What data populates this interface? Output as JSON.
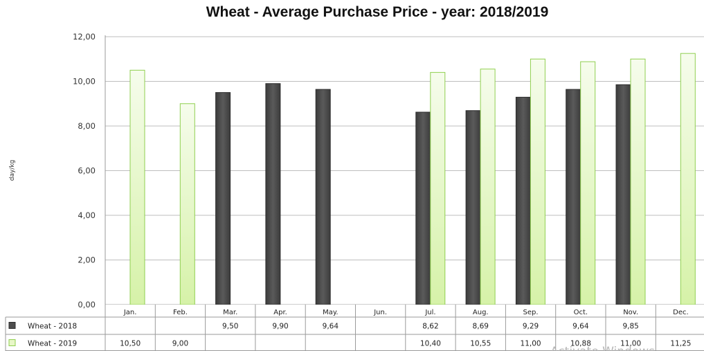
{
  "chart_data": {
    "type": "bar",
    "title": "Wheat - Average Purchase Price - year: 2018/2019",
    "ylabel": "day/kg",
    "xlabel": "",
    "ylim": [
      0,
      12
    ],
    "y_ticks": [
      "0,00",
      "2,00",
      "4,00",
      "6,00",
      "8,00",
      "10,00",
      "12,00"
    ],
    "grid": true,
    "legend_placement": "data-table-left",
    "categories": [
      "Jan.",
      "Feb.",
      "Mar.",
      "Apr.",
      "May.",
      "Jun.",
      "Jul.",
      "Aug.",
      "Sep.",
      "Oct.",
      "Nov.",
      "Dec."
    ],
    "series": [
      {
        "name": "Wheat  - 2018",
        "color": "#4d4d4d",
        "values": [
          null,
          null,
          9.5,
          9.9,
          9.64,
          null,
          8.62,
          8.69,
          9.29,
          9.64,
          9.85,
          null
        ],
        "labels": [
          "",
          "",
          "9,50",
          "9,90",
          "9,64",
          "",
          "8,62",
          "8,69",
          "9,29",
          "9,64",
          "9,85",
          ""
        ]
      },
      {
        "name": "Wheat  - 2019",
        "color": "#e8f7c8",
        "values": [
          10.5,
          9.0,
          null,
          null,
          null,
          null,
          10.4,
          10.55,
          11.0,
          10.88,
          11.0,
          11.25
        ],
        "labels": [
          "10,50",
          "9,00",
          "",
          "",
          "",
          "",
          "10,40",
          "10,55",
          "11,00",
          "10,88",
          "11,00",
          "11,25"
        ]
      }
    ]
  },
  "watermark": "Activate Windows"
}
